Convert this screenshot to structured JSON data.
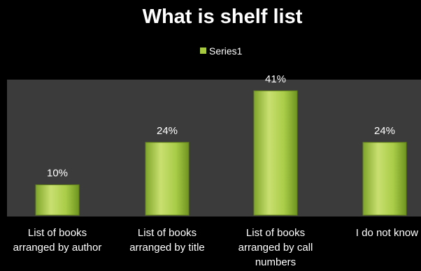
{
  "chart_data": {
    "type": "bar",
    "title": "What is shelf list",
    "legend": {
      "placement": "top-center",
      "entries": [
        "Series1"
      ]
    },
    "categories": [
      [
        "List of books",
        "arranged by author"
      ],
      [
        "List of books",
        "arranged by title"
      ],
      [
        "List of books",
        "arranged by call",
        "numbers"
      ],
      [
        "I do not know"
      ]
    ],
    "series": [
      {
        "name": "Series1",
        "values": [
          10,
          24,
          41,
          24
        ],
        "labels": [
          "10%",
          "24%",
          "41%",
          "24%"
        ]
      }
    ],
    "ylim": [
      0,
      41
    ],
    "grid": false,
    "colors": {
      "background": "#000000",
      "plot_area": "#3b3b3b",
      "bar_light": "#c8e06a",
      "bar_mid": "#9cc43a",
      "bar_dark": "#6e9220",
      "text": "#ffffff"
    }
  }
}
